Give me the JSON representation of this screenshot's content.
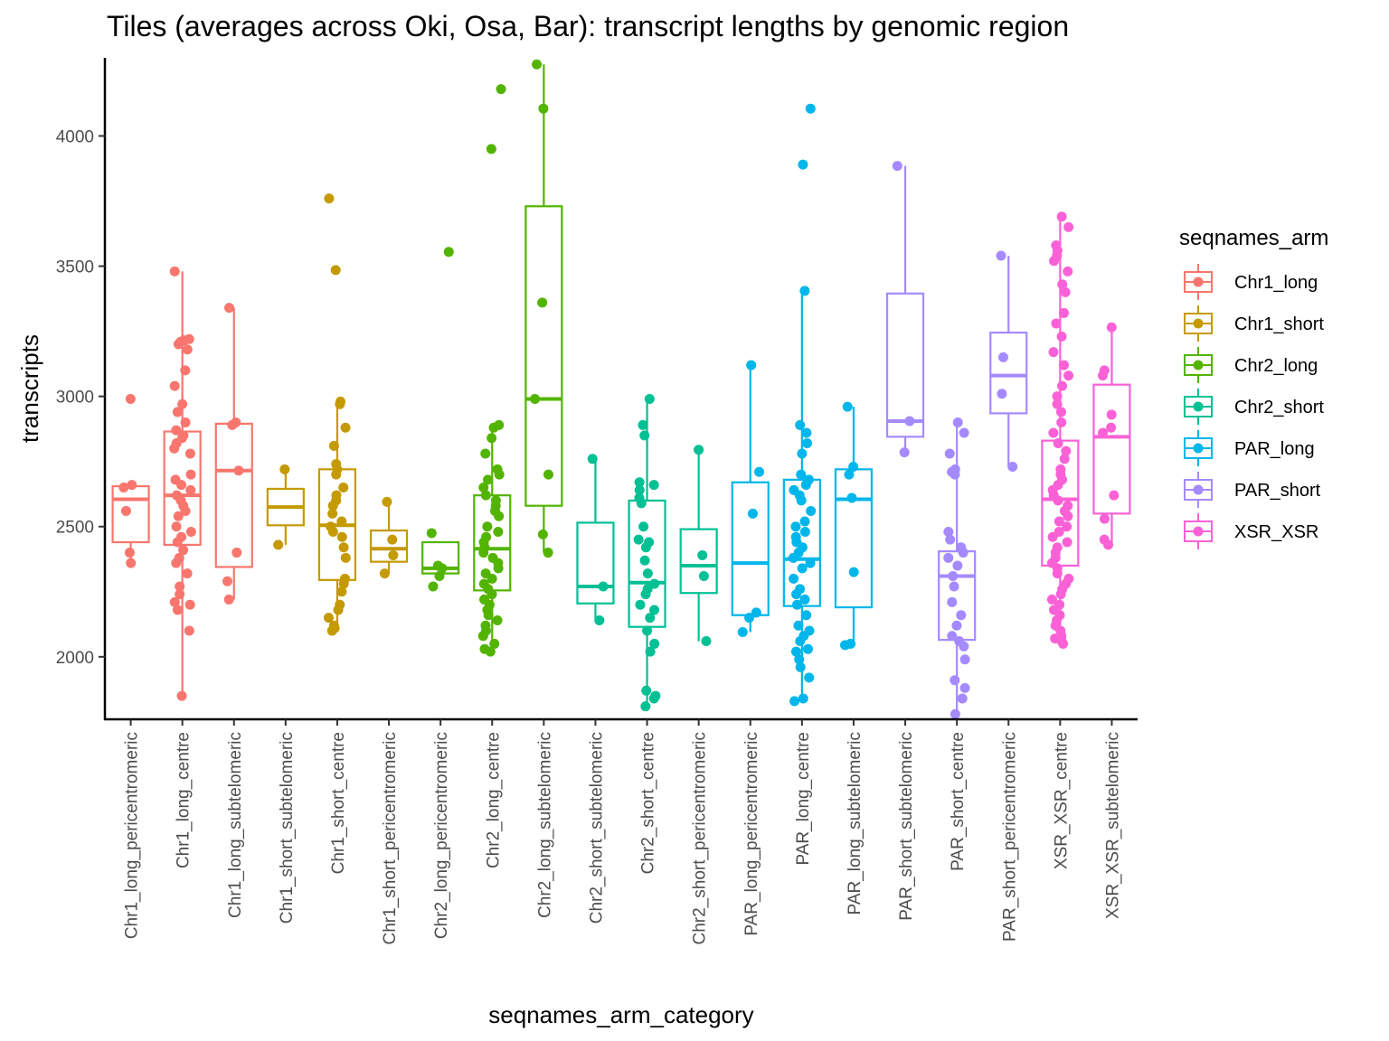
{
  "chart_data": {
    "type": "box",
    "title": "Tiles (averages across Oki, Osa, Bar): transcript lengths by genomic region",
    "xlabel": "seqnames_arm_category",
    "ylabel": "transcripts",
    "ylim": [
      1760,
      4300
    ],
    "yticks": [
      2000,
      2500,
      3000,
      3500,
      4000
    ],
    "grid": false,
    "legend": {
      "title": "seqnames_arm",
      "position": "right",
      "entries": [
        {
          "name": "Chr1_long",
          "color": "#F8766D"
        },
        {
          "name": "Chr1_short",
          "color": "#C49A00"
        },
        {
          "name": "Chr2_long",
          "color": "#53B400"
        },
        {
          "name": "Chr2_short",
          "color": "#00C094"
        },
        {
          "name": "PAR_long",
          "color": "#00B6EB"
        },
        {
          "name": "PAR_short",
          "color": "#A58AFF"
        },
        {
          "name": "XSR_XSR",
          "color": "#FB61D7"
        }
      ]
    },
    "categories": [
      {
        "label": "Chr1_long_pericentromeric",
        "group": "Chr1_long",
        "stats": {
          "min": 2360,
          "q1": 2440,
          "median": 2605,
          "q3": 2655,
          "max": 2660
        },
        "points": [
          2990,
          2660,
          2650,
          2560,
          2400,
          2360
        ]
      },
      {
        "label": "Chr1_long_centre",
        "group": "Chr1_long",
        "stats": {
          "min": 1850,
          "q1": 2430,
          "median": 2620,
          "q3": 2865,
          "max": 3480
        },
        "points": [
          3480,
          3220,
          3215,
          3210,
          3200,
          3180,
          3100,
          3040,
          2970,
          2940,
          2900,
          2870,
          2850,
          2840,
          2820,
          2800,
          2780,
          2700,
          2680,
          2660,
          2640,
          2620,
          2600,
          2580,
          2560,
          2540,
          2500,
          2480,
          2460,
          2440,
          2410,
          2380,
          2360,
          2320,
          2270,
          2240,
          2210,
          2200,
          2180,
          2100,
          1850
        ]
      },
      {
        "label": "Chr1_long_subtelomeric",
        "group": "Chr1_long",
        "stats": {
          "min": 2220,
          "q1": 2345,
          "median": 2715,
          "q3": 2895,
          "max": 3340
        },
        "points": [
          3340,
          2900,
          2890,
          2715,
          2400,
          2290,
          2220
        ]
      },
      {
        "label": "Chr1_short_subtelomeric",
        "group": "Chr1_short",
        "stats": {
          "min": 2430,
          "q1": 2505,
          "median": 2575,
          "q3": 2645,
          "max": 2720
        },
        "points": [
          2720,
          2430
        ]
      },
      {
        "label": "Chr1_short_centre",
        "group": "Chr1_short",
        "stats": {
          "min": 2100,
          "q1": 2295,
          "median": 2505,
          "q3": 2720,
          "max": 2980
        },
        "points": [
          3760,
          3485,
          2980,
          2970,
          2880,
          2810,
          2740,
          2720,
          2700,
          2650,
          2620,
          2600,
          2580,
          2550,
          2520,
          2500,
          2480,
          2460,
          2420,
          2380,
          2300,
          2280,
          2250,
          2200,
          2180,
          2150,
          2120,
          2110,
          2100
        ]
      },
      {
        "label": "Chr1_short_pericentromeric",
        "group": "Chr1_short",
        "stats": {
          "min": 2320,
          "q1": 2365,
          "median": 2415,
          "q3": 2485,
          "max": 2595
        },
        "points": [
          2595,
          2450,
          2390,
          2320
        ]
      },
      {
        "label": "Chr2_long_pericentromeric",
        "group": "Chr2_long",
        "stats": {
          "min": 2320,
          "q1": 2320,
          "median": 2340,
          "q3": 2440,
          "max": 2440
        },
        "points": [
          3555,
          2475,
          2350,
          2340,
          2310,
          2270
        ]
      },
      {
        "label": "Chr2_long_centre",
        "group": "Chr2_long",
        "stats": {
          "min": 2020,
          "q1": 2255,
          "median": 2415,
          "q3": 2620,
          "max": 2890
        },
        "points": [
          4180,
          3950,
          2890,
          2880,
          2840,
          2780,
          2720,
          2700,
          2680,
          2650,
          2620,
          2600,
          2580,
          2560,
          2540,
          2500,
          2480,
          2460,
          2440,
          2420,
          2400,
          2380,
          2360,
          2340,
          2320,
          2300,
          2280,
          2260,
          2240,
          2220,
          2200,
          2180,
          2160,
          2140,
          2120,
          2100,
          2080,
          2050,
          2030,
          2020
        ]
      },
      {
        "label": "Chr2_long_subtelomeric",
        "group": "Chr2_long",
        "stats": {
          "min": 2400,
          "q1": 2580,
          "median": 2990,
          "q3": 3730,
          "max": 4275
        },
        "points": [
          4275,
          4105,
          3360,
          2990,
          2700,
          2470,
          2400
        ]
      },
      {
        "label": "Chr2_short_subtelomeric",
        "group": "Chr2_short",
        "stats": {
          "min": 2140,
          "q1": 2205,
          "median": 2270,
          "q3": 2515,
          "max": 2760
        },
        "points": [
          2760,
          2270,
          2140
        ]
      },
      {
        "label": "Chr2_short_centre",
        "group": "Chr2_short",
        "stats": {
          "min": 1810,
          "q1": 2115,
          "median": 2285,
          "q3": 2600,
          "max": 2990
        },
        "points": [
          2990,
          2890,
          2850,
          2670,
          2660,
          2640,
          2610,
          2590,
          2500,
          2450,
          2440,
          2420,
          2370,
          2320,
          2280,
          2260,
          2240,
          2200,
          2180,
          2150,
          2100,
          2050,
          2020,
          1870,
          1850,
          1840,
          1810
        ]
      },
      {
        "label": "Chr2_short_pericentromeric",
        "group": "Chr2_short",
        "stats": {
          "min": 2060,
          "q1": 2245,
          "median": 2350,
          "q3": 2490,
          "max": 2795
        },
        "points": [
          2795,
          2390,
          2310,
          2060
        ]
      },
      {
        "label": "PAR_long_pericentromeric",
        "group": "PAR_long",
        "stats": {
          "min": 2095,
          "q1": 2160,
          "median": 2360,
          "q3": 2670,
          "max": 3120
        },
        "points": [
          3120,
          2710,
          2550,
          2170,
          2150,
          2095
        ]
      },
      {
        "label": "PAR_long_centre",
        "group": "PAR_long",
        "stats": {
          "min": 1830,
          "q1": 2195,
          "median": 2375,
          "q3": 2680,
          "max": 3410
        },
        "points": [
          4105,
          3890,
          3405,
          2890,
          2860,
          2820,
          2780,
          2700,
          2680,
          2660,
          2640,
          2620,
          2600,
          2560,
          2520,
          2500,
          2480,
          2460,
          2440,
          2420,
          2400,
          2380,
          2360,
          2340,
          2300,
          2260,
          2240,
          2220,
          2200,
          2160,
          2120,
          2100,
          2080,
          2060,
          2030,
          2020,
          1990,
          1960,
          1920,
          1840,
          1830
        ]
      },
      {
        "label": "PAR_long_subtelomeric",
        "group": "PAR_long",
        "stats": {
          "min": 2050,
          "q1": 2190,
          "median": 2605,
          "q3": 2720,
          "max": 2960
        },
        "points": [
          2960,
          2730,
          2700,
          2610,
          2325,
          2050,
          2045
        ]
      },
      {
        "label": "PAR_short_subtelomeric",
        "group": "PAR_short",
        "stats": {
          "min": 2785,
          "q1": 2845,
          "median": 2905,
          "q3": 3395,
          "max": 3885
        },
        "points": [
          3885,
          2905,
          2785
        ]
      },
      {
        "label": "PAR_short_centre",
        "group": "PAR_short",
        "stats": {
          "min": 1780,
          "q1": 2065,
          "median": 2310,
          "q3": 2405,
          "max": 2900
        },
        "points": [
          2900,
          2860,
          2780,
          2720,
          2710,
          2700,
          2480,
          2450,
          2420,
          2400,
          2380,
          2350,
          2310,
          2270,
          2210,
          2160,
          2120,
          2080,
          2060,
          2040,
          1990,
          1910,
          1880,
          1840,
          1780
        ]
      },
      {
        "label": "PAR_short_pericentromeric",
        "group": "PAR_short",
        "stats": {
          "min": 2730,
          "q1": 2935,
          "median": 3080,
          "q3": 3245,
          "max": 3540
        },
        "points": [
          3540,
          3150,
          3010,
          2730
        ]
      },
      {
        "label": "XSR_XSR_centre",
        "group": "XSR_XSR",
        "stats": {
          "min": 2050,
          "q1": 2350,
          "median": 2605,
          "q3": 2830,
          "max": 3690
        },
        "points": [
          3690,
          3650,
          3580,
          3560,
          3540,
          3520,
          3480,
          3430,
          3400,
          3320,
          3280,
          3230,
          3170,
          3120,
          3080,
          3040,
          3000,
          2970,
          2940,
          2900,
          2860,
          2820,
          2790,
          2760,
          2720,
          2700,
          2680,
          2660,
          2640,
          2620,
          2600,
          2580,
          2560,
          2540,
          2520,
          2500,
          2480,
          2460,
          2440,
          2420,
          2400,
          2380,
          2360,
          2340,
          2320,
          2300,
          2280,
          2260,
          2240,
          2220,
          2200,
          2180,
          2160,
          2140,
          2120,
          2100,
          2080,
          2070,
          2060,
          2050
        ]
      },
      {
        "label": "XSR_XSR_subtelomeric",
        "group": "XSR_XSR",
        "stats": {
          "min": 2430,
          "q1": 2550,
          "median": 2845,
          "q3": 3045,
          "max": 3265
        },
        "points": [
          3265,
          3100,
          3080,
          2930,
          2880,
          2860,
          2620,
          2530,
          2450,
          2430
        ]
      }
    ]
  }
}
